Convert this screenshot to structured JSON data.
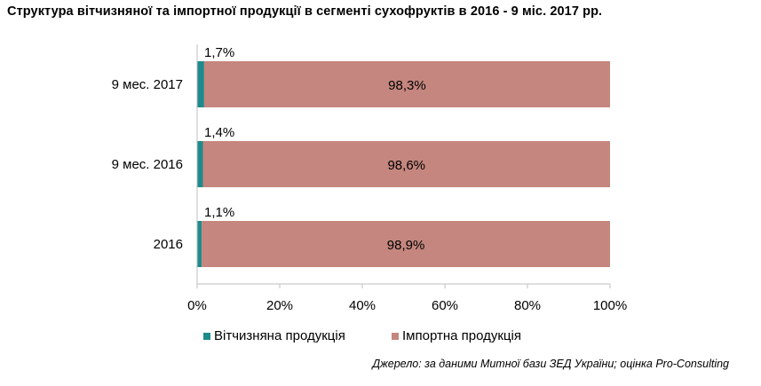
{
  "title": "Структура вітчизняної та імпортної продукції в сегменті сухофруктів в 2016 - 9 міс. 2017 рр.",
  "source": "Джерело: за даними Митної бази ЗЕД України; оцінка Pro-Consulting",
  "colors": {
    "domestic": "#1f8a8c",
    "import": "#c4867e",
    "axis": "#bfbfbf"
  },
  "chart_data": {
    "type": "bar",
    "orientation": "horizontal",
    "stacked": "percent",
    "categories": [
      "9 мес. 2017",
      "9 мес. 2016",
      "2016"
    ],
    "series": [
      {
        "name": "Вітчизняна продукція",
        "values": [
          1.7,
          1.4,
          1.1
        ],
        "labels": [
          "1,7%",
          "1,4%",
          "1,1%"
        ],
        "color": "#1f8a8c"
      },
      {
        "name": "Імпортна продукція",
        "values": [
          98.3,
          98.6,
          98.9
        ],
        "labels": [
          "98,3%",
          "98,6%",
          "98,9%"
        ],
        "color": "#c4867e"
      }
    ],
    "xlim": [
      0,
      100
    ],
    "xticks": [
      "0%",
      "20%",
      "40%",
      "60%",
      "80%",
      "100%"
    ],
    "legend": "bottom",
    "grid": false
  }
}
